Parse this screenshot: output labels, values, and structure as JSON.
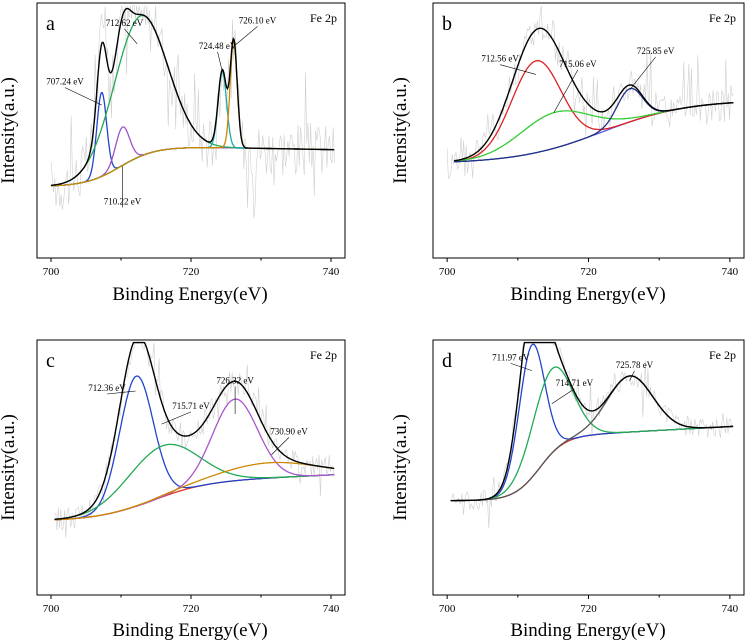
{
  "chart_data": [
    {
      "type": "line",
      "panel_label": "a",
      "element": "Fe 2p",
      "xlabel": "Binding Energy(eV)",
      "ylabel": "Intensity(a.u.)",
      "xlim": [
        698,
        742
      ],
      "ylim": [
        0,
        100
      ],
      "xticks": [
        700,
        720,
        740
      ],
      "raw_data": {
        "amplitude": 40,
        "x_start": 700,
        "x_end": 740.5,
        "step": 0.18
      },
      "background": {
        "x_start": 700,
        "x_end": 740.5,
        "y_low": 28,
        "y_high": 44,
        "edge": 710,
        "edge_width": 2.5,
        "tail_slope": -0.05
      },
      "components": [
        {
          "name": "707.24 eV",
          "center": 707.24,
          "height": 33,
          "fwhm": 0.7,
          "color": "#2244cc"
        },
        {
          "name": "710.22 eV",
          "center": 710.22,
          "height": 15,
          "fwhm": 1.0,
          "color": "#9955cc"
        },
        {
          "name": "712.62 eV",
          "center": 712.8,
          "height": 55,
          "fwhm": 3.8,
          "color": "#22aa55"
        },
        {
          "name": "724.48 eV",
          "center": 724.48,
          "height": 30,
          "fwhm": 0.6,
          "color": "#20aaaa"
        },
        {
          "name": "726.10 eV",
          "center": 726.1,
          "height": 42,
          "fwhm": 0.5,
          "color": "#cc8800"
        }
      ],
      "envelope_color": "#000000",
      "background_color": "#22cccc",
      "annotations": [
        {
          "text": "707.24 eV",
          "x": 707.24,
          "y": 60,
          "tx": 702,
          "ty": 68
        },
        {
          "text": "712.62 eV",
          "x": 712.3,
          "y": 84,
          "tx": 710.5,
          "ty": 91
        },
        {
          "text": "710.22 eV",
          "x": 710.22,
          "y": 36,
          "tx": 710.22,
          "ty": 21
        },
        {
          "text": "724.48 eV",
          "x": 724.48,
          "y": 73,
          "tx": 723.8,
          "ty": 82
        },
        {
          "text": "726.10 eV",
          "x": 726.1,
          "y": 83,
          "tx": 729.5,
          "ty": 92
        }
      ]
    },
    {
      "type": "line",
      "panel_label": "b",
      "element": "Fe 2p",
      "xlabel": "Binding Energy(eV)",
      "ylabel": "Intensity(a.u.)",
      "xlim": [
        698,
        742
      ],
      "ylim": [
        0,
        100
      ],
      "xticks": [
        700,
        720,
        740
      ],
      "raw_data": {
        "amplitude": 28,
        "x_start": 700,
        "x_end": 740.5,
        "step": 0.18
      },
      "background": {
        "x_start": 701,
        "x_end": 740.5,
        "y_low": 37,
        "y_high": 62,
        "edge": 722,
        "edge_width": 6,
        "tail_slope": 0
      },
      "components": [
        {
          "name": "712.56 eV",
          "center": 712.6,
          "height": 36,
          "fwhm": 3.5,
          "color": "#dd2222"
        },
        {
          "name": "715.06 eV",
          "center": 715.2,
          "height": 14,
          "fwhm": 5,
          "color": "#33cc33"
        },
        {
          "name": "725.85 eV",
          "center": 725.85,
          "height": 13,
          "fwhm": 1.8,
          "color": "#223388"
        }
      ],
      "envelope_color": "#000000",
      "background_color": "#5555dd",
      "annotations": [
        {
          "text": "712.56 eV",
          "x": 712.56,
          "y": 72,
          "tx": 707.5,
          "ty": 77
        },
        {
          "text": "715.06 eV",
          "x": 715.1,
          "y": 57,
          "tx": 718.5,
          "ty": 75
        },
        {
          "text": "725.85 eV",
          "x": 725.85,
          "y": 66,
          "tx": 729.5,
          "ty": 80
        }
      ]
    },
    {
      "type": "line",
      "panel_label": "c",
      "element": "Fe 2p",
      "xlabel": "Binding Energy(eV)",
      "ylabel": "Intensity(a.u.)",
      "xlim": [
        698,
        742
      ],
      "ylim": [
        0,
        100
      ],
      "xticks": [
        700,
        720,
        740
      ],
      "raw_data": {
        "amplitude": 18,
        "x_start": 700.5,
        "x_end": 740.5,
        "step": 0.18
      },
      "background": {
        "x_start": 700.5,
        "x_end": 740.5,
        "y_low": 29,
        "y_high": 44,
        "edge": 714,
        "edge_width": 4,
        "tail_slope": 0.12
      },
      "components": [
        {
          "name": "712.36 eV",
          "center": 712.2,
          "height": 51,
          "fwhm": 2.4,
          "color": "#2244cc"
        },
        {
          "name": "715.71 eV",
          "center": 715.9,
          "height": 20,
          "fwhm": 5,
          "color": "#22aa55"
        },
        {
          "name": "726.32 eV",
          "center": 726.3,
          "height": 32,
          "fwhm": 3.2,
          "color": "#aa55cc"
        },
        {
          "name": "730.90 eV",
          "center": 731.2,
          "height": 6,
          "fwhm": 7,
          "color": "#cc8800"
        }
      ],
      "envelope_color": "#000000",
      "background_color": "#dd3322",
      "annotations": [
        {
          "text": "712.36 eV",
          "x": 712.1,
          "y": 80,
          "tx": 708,
          "ty": 80
        },
        {
          "text": "715.71 eV",
          "x": 715.8,
          "y": 67,
          "tx": 720,
          "ty": 73
        },
        {
          "text": "726.32 eV",
          "x": 726.3,
          "y": 71,
          "tx": 726.3,
          "ty": 83
        },
        {
          "text": "730.90 eV",
          "x": 731.5,
          "y": 55,
          "tx": 734,
          "ty": 63
        }
      ]
    },
    {
      "type": "line",
      "panel_label": "d",
      "element": "Fe 2p",
      "xlabel": "Binding Energy(eV)",
      "ylabel": "Intensity(a.u.)",
      "xlim": [
        698,
        742
      ],
      "ylim": [
        0,
        100
      ],
      "xticks": [
        700,
        720,
        740
      ],
      "raw_data": {
        "amplitude": 14,
        "x_start": 700.5,
        "x_end": 740.5,
        "step": 0.18
      },
      "background": {
        "x_start": 700.5,
        "x_end": 740.5,
        "y_low": 37,
        "y_high": 62,
        "edge": 713,
        "edge_width": 1.8,
        "tail_slope": 0.15
      },
      "components": [
        {
          "name": "711.97 eV",
          "center": 711.97,
          "height": 52,
          "fwhm": 1.8,
          "color": "#2244cc"
        },
        {
          "name": "714.71 eV",
          "center": 714.8,
          "height": 33,
          "fwhm": 2.8,
          "color": "#22aa55"
        },
        {
          "name": "725.78 eV",
          "center": 725.9,
          "height": 22,
          "fwhm": 3.2,
          "color": "#555555"
        }
      ],
      "envelope_color": "#000000",
      "background_color": "#dd3322",
      "annotations": [
        {
          "text": "711.97 eV",
          "x": 712,
          "y": 88,
          "tx": 709,
          "ty": 92
        },
        {
          "text": "714.71 eV",
          "x": 714.8,
          "y": 75,
          "tx": 718,
          "ty": 82
        },
        {
          "text": "725.78 eV",
          "x": 725.8,
          "y": 84,
          "tx": 726.5,
          "ty": 89
        }
      ]
    }
  ]
}
